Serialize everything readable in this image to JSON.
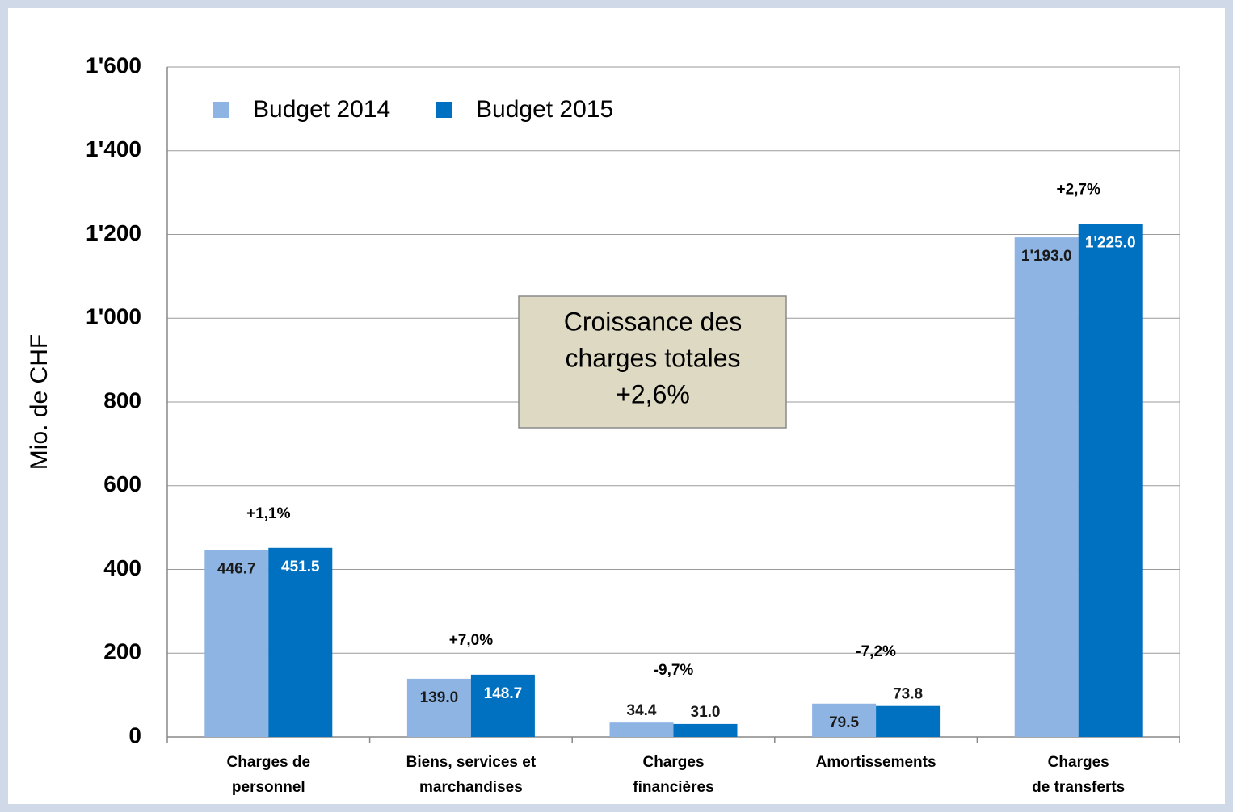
{
  "chart_data": {
    "type": "bar",
    "y_axis_label": "Mio. de CHF",
    "categories": [
      [
        "Charges de",
        "personnel"
      ],
      [
        "Biens, services et",
        "marchandises"
      ],
      [
        "Charges",
        "financières"
      ],
      [
        "Amortissements"
      ],
      [
        "Charges",
        "de transferts"
      ]
    ],
    "series": [
      {
        "name": "Budget 2014",
        "color": "#8eb4e3",
        "label_color": "#1a1a1a",
        "values": [
          446.7,
          139.0,
          34.4,
          79.5,
          1193.0
        ],
        "value_labels": [
          "446.7",
          "139.0",
          "34.4",
          "79.5",
          "1'193.0"
        ]
      },
      {
        "name": "Budget 2015",
        "color": "#0070c0",
        "label_color": "#ffffff",
        "values": [
          451.5,
          148.7,
          31.0,
          73.8,
          1225.0
        ],
        "value_labels": [
          "451.5",
          "148.7",
          "31.0",
          "73.8",
          "1'225.0"
        ]
      }
    ],
    "growth_labels": [
      "+1,1%",
      "+7,0%",
      "-9,7%",
      "-7,2%",
      "+2,7%"
    ],
    "annotation": [
      "Croissance des",
      "charges totales",
      "+2,6%"
    ],
    "ylim": [
      0,
      1600
    ],
    "yticks": [
      0,
      200,
      400,
      600,
      800,
      {
        "value": 1000,
        "label": "1'000"
      },
      {
        "value": 1200,
        "label": "1'200"
      },
      {
        "value": 1400,
        "label": "1'400"
      },
      {
        "value": 1600,
        "label": "1'600"
      }
    ],
    "grid": true,
    "legend": "top-left"
  }
}
